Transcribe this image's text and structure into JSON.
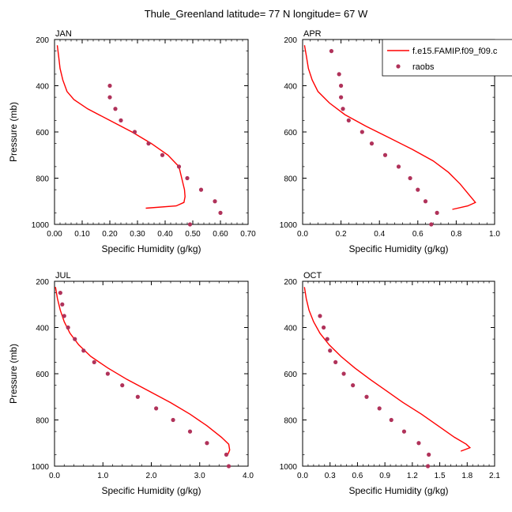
{
  "title": "Thule_Greenland  latitude= 77 N longitude= 67 W",
  "legend": {
    "model_label": "f.e15.FAMIP.f09_f09.c",
    "obs_label": "raobs",
    "model_color": "#ff0000",
    "obs_color": "#b0325a"
  },
  "chart_data": [
    {
      "type": "line",
      "title": "JAN",
      "xlabel": "Specific Humidity (g/kg)",
      "ylabel": "Pressure (mb)",
      "xlim": [
        0,
        0.7
      ],
      "ylim": [
        1000,
        200
      ],
      "xticks": [
        "0.00",
        "0.10",
        "0.20",
        "0.30",
        "0.40",
        "0.50",
        "0.60",
        "0.70"
      ],
      "yticks": [
        "200",
        "400",
        "600",
        "800",
        "1000"
      ],
      "series": [
        {
          "kind": "line",
          "points": [
            [
              0.01,
              225
            ],
            [
              0.015,
              275
            ],
            [
              0.02,
              325
            ],
            [
              0.03,
              375
            ],
            [
              0.045,
              425
            ],
            [
              0.07,
              460
            ],
            [
              0.12,
              500
            ],
            [
              0.2,
              550
            ],
            [
              0.28,
              600
            ],
            [
              0.35,
              650
            ],
            [
              0.41,
              700
            ],
            [
              0.45,
              750
            ],
            [
              0.46,
              800
            ],
            [
              0.47,
              850
            ],
            [
              0.472,
              880
            ],
            [
              0.468,
              905
            ],
            [
              0.44,
              920
            ],
            [
              0.33,
              930
            ]
          ]
        },
        {
          "kind": "scatter",
          "points": [
            [
              0.2,
              400
            ],
            [
              0.2,
              450
            ],
            [
              0.22,
              500
            ],
            [
              0.24,
              550
            ],
            [
              0.29,
              600
            ],
            [
              0.34,
              650
            ],
            [
              0.39,
              700
            ],
            [
              0.45,
              750
            ],
            [
              0.48,
              800
            ],
            [
              0.53,
              850
            ],
            [
              0.58,
              900
            ],
            [
              0.6,
              950
            ],
            [
              0.49,
              1000
            ]
          ]
        }
      ]
    },
    {
      "type": "line",
      "title": "APR",
      "xlabel": "Specific Humidity (g/kg)",
      "ylabel": "",
      "xlim": [
        0,
        1.0
      ],
      "ylim": [
        1000,
        200
      ],
      "xticks": [
        "0.0",
        "0.2",
        "0.4",
        "0.6",
        "0.8",
        "1.0"
      ],
      "yticks": [
        "200",
        "400",
        "600",
        "800",
        "1000"
      ],
      "series": [
        {
          "kind": "line",
          "points": [
            [
              0.01,
              225
            ],
            [
              0.02,
              275
            ],
            [
              0.03,
              325
            ],
            [
              0.05,
              375
            ],
            [
              0.08,
              425
            ],
            [
              0.14,
              475
            ],
            [
              0.22,
              525
            ],
            [
              0.33,
              575
            ],
            [
              0.45,
              625
            ],
            [
              0.57,
              675
            ],
            [
              0.68,
              725
            ],
            [
              0.76,
              775
            ],
            [
              0.82,
              825
            ],
            [
              0.87,
              875
            ],
            [
              0.9,
              905
            ],
            [
              0.86,
              920
            ],
            [
              0.78,
              935
            ]
          ]
        },
        {
          "kind": "scatter",
          "points": [
            [
              0.15,
              250
            ],
            [
              0.19,
              350
            ],
            [
              0.2,
              400
            ],
            [
              0.2,
              450
            ],
            [
              0.21,
              500
            ],
            [
              0.24,
              550
            ],
            [
              0.31,
              600
            ],
            [
              0.36,
              650
            ],
            [
              0.43,
              700
            ],
            [
              0.5,
              750
            ],
            [
              0.56,
              800
            ],
            [
              0.6,
              850
            ],
            [
              0.64,
              900
            ],
            [
              0.7,
              950
            ],
            [
              0.67,
              1000
            ]
          ]
        }
      ]
    },
    {
      "type": "line",
      "title": "JUL",
      "xlabel": "Specific Humidity (g/kg)",
      "ylabel": "Pressure (mb)",
      "xlim": [
        0,
        4.0
      ],
      "ylim": [
        1000,
        200
      ],
      "xticks": [
        "0.0",
        "1.0",
        "2.0",
        "3.0",
        "4.0"
      ],
      "yticks": [
        "200",
        "400",
        "600",
        "800",
        "1000"
      ],
      "series": [
        {
          "kind": "line",
          "points": [
            [
              0.02,
              225
            ],
            [
              0.06,
              275
            ],
            [
              0.12,
              325
            ],
            [
              0.2,
              375
            ],
            [
              0.32,
              425
            ],
            [
              0.5,
              475
            ],
            [
              0.75,
              525
            ],
            [
              1.1,
              575
            ],
            [
              1.5,
              625
            ],
            [
              1.95,
              675
            ],
            [
              2.4,
              725
            ],
            [
              2.8,
              775
            ],
            [
              3.15,
              825
            ],
            [
              3.45,
              875
            ],
            [
              3.6,
              905
            ],
            [
              3.62,
              930
            ],
            [
              3.58,
              950
            ]
          ]
        },
        {
          "kind": "scatter",
          "points": [
            [
              0.12,
              250
            ],
            [
              0.16,
              300
            ],
            [
              0.2,
              350
            ],
            [
              0.28,
              400
            ],
            [
              0.42,
              450
            ],
            [
              0.6,
              500
            ],
            [
              0.82,
              550
            ],
            [
              1.1,
              600
            ],
            [
              1.4,
              650
            ],
            [
              1.72,
              700
            ],
            [
              2.1,
              750
            ],
            [
              2.45,
              800
            ],
            [
              2.8,
              850
            ],
            [
              3.15,
              900
            ],
            [
              3.55,
              950
            ],
            [
              3.6,
              1000
            ]
          ]
        }
      ]
    },
    {
      "type": "line",
      "title": "OCT",
      "xlabel": "Specific Humidity (g/kg)",
      "ylabel": "",
      "xlim": [
        0,
        2.1
      ],
      "ylim": [
        1000,
        200
      ],
      "xticks": [
        "0.0",
        "0.3",
        "0.6",
        "0.9",
        "1.2",
        "1.5",
        "1.8",
        "2.1"
      ],
      "yticks": [
        "200",
        "400",
        "600",
        "800",
        "1000"
      ],
      "series": [
        {
          "kind": "line",
          "points": [
            [
              0.02,
              225
            ],
            [
              0.04,
              275
            ],
            [
              0.07,
              325
            ],
            [
              0.12,
              375
            ],
            [
              0.19,
              425
            ],
            [
              0.29,
              475
            ],
            [
              0.42,
              525
            ],
            [
              0.57,
              575
            ],
            [
              0.74,
              625
            ],
            [
              0.92,
              675
            ],
            [
              1.1,
              725
            ],
            [
              1.3,
              775
            ],
            [
              1.48,
              825
            ],
            [
              1.66,
              875
            ],
            [
              1.79,
              905
            ],
            [
              1.83,
              920
            ],
            [
              1.73,
              935
            ]
          ]
        },
        {
          "kind": "scatter",
          "points": [
            [
              0.19,
              350
            ],
            [
              0.23,
              400
            ],
            [
              0.27,
              450
            ],
            [
              0.3,
              500
            ],
            [
              0.36,
              550
            ],
            [
              0.45,
              600
            ],
            [
              0.55,
              650
            ],
            [
              0.7,
              700
            ],
            [
              0.84,
              750
            ],
            [
              0.97,
              800
            ],
            [
              1.11,
              850
            ],
            [
              1.27,
              900
            ],
            [
              1.38,
              950
            ],
            [
              1.37,
              1000
            ]
          ]
        }
      ]
    }
  ]
}
